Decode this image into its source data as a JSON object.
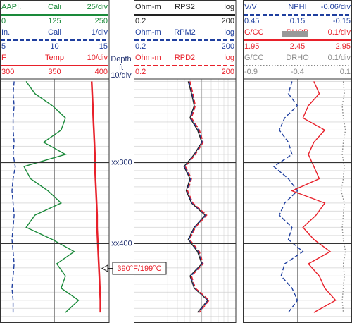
{
  "chart_data": {
    "type": "well-log",
    "depth_label": "Depth",
    "depth_unit": "ft",
    "depth_scale": "10/div",
    "ylim": [
      197,
      498
    ],
    "yticks": [
      {
        "value": 300,
        "label": "xx300"
      },
      {
        "value": 400,
        "label": "xx400"
      }
    ],
    "depths": [
      200,
      215,
      230,
      245,
      260,
      275,
      290,
      305,
      320,
      335,
      350,
      365,
      380,
      395,
      410,
      425,
      440,
      455,
      470,
      485
    ],
    "annotation": "390°F/199°C",
    "tracks": [
      {
        "curves": [
          {
            "unit": "AAPI.",
            "name": "Cali",
            "scale": "25/div",
            "color": "#1a8a3a",
            "dash": "solid",
            "xlim": [
              0,
              250
            ],
            "xticks": [
              0,
              125,
              250
            ],
            "values": [
              60,
              80,
              120,
              150,
              140,
              100,
              150,
              55,
              70,
              110,
              140,
              80,
              60,
              120,
              170,
              130,
              150,
              140,
              180,
              150
            ]
          },
          {
            "unit": "In.",
            "name": "Cali",
            "scale": "1/div",
            "color": "#1f3f9f",
            "dash": "dashed",
            "xlim": [
              5,
              15
            ],
            "xticks": [
              5,
              10,
              15
            ],
            "values": [
              6.3,
              6.2,
              6.3,
              6.2,
              6.2,
              6.3,
              6.2,
              6.4,
              6.2,
              6.1,
              6.2,
              6.3,
              6.2,
              6.1,
              6.2,
              6.3,
              6.2,
              6.1,
              6.2,
              6.2
            ]
          },
          {
            "unit": "F",
            "name": "Temp",
            "scale": "10/div",
            "color": "#e8202a",
            "dash": "solid",
            "xlim": [
              300,
              400
            ],
            "xticks": [
              300,
              350,
              400
            ],
            "values": [
              384,
              384.5,
              385,
              385.5,
              386,
              386.5,
              387,
              387,
              387.5,
              388,
              388.5,
              389,
              389,
              389.5,
              390,
              390.5,
              391,
              391.5,
              392,
              392
            ]
          }
        ]
      },
      {
        "curves": [
          {
            "unit": "Ohm-m",
            "name": "RPS2",
            "scale": "log",
            "color": "#222222",
            "dash": "solid",
            "log": true,
            "xlim": [
              0.2,
              200
            ],
            "xticks": [
              0.2,
              200
            ],
            "values": [
              8,
              10,
              12,
              9,
              15,
              20,
              12,
              6,
              9,
              7,
              10,
              25,
              12,
              8,
              15,
              20,
              9,
              12,
              30,
              15
            ]
          },
          {
            "unit": "Ohm-m",
            "name": "RPM2",
            "scale": "log",
            "color": "#1f3f9f",
            "dash": "dashed",
            "log": true,
            "xlim": [
              0.2,
              200
            ],
            "xticks": [
              0.2,
              200
            ],
            "values": [
              8.5,
              10.5,
              12.5,
              9.5,
              16,
              21,
              12.5,
              6.3,
              9.5,
              7.4,
              10.5,
              26,
              12.5,
              8.4,
              16,
              21,
              9.5,
              12.5,
              31,
              16
            ]
          },
          {
            "unit": "Ohm-m",
            "name": "RPD2",
            "scale": "log",
            "color": "#e8202a",
            "dash": "dashed",
            "log": true,
            "xlim": [
              0.2,
              200
            ],
            "xticks": [
              0.2,
              200
            ],
            "values": [
              9,
              11,
              13,
              10,
              17,
              22,
              13,
              6.6,
              10,
              7.7,
              11,
              28,
              13,
              8.8,
              17,
              22,
              10,
              13,
              33,
              17
            ]
          }
        ]
      },
      {
        "curves": [
          {
            "unit": "V/V",
            "name": "NPHI",
            "scale": "-0.06/div",
            "color": "#1f3f9f",
            "dash": "dashed",
            "xlim": [
              0.45,
              -0.15
            ],
            "xticks": [
              0.45,
              0.15,
              -0.15
            ],
            "values": [
              0.18,
              0.2,
              0.15,
              0.22,
              0.25,
              0.2,
              0.18,
              0.28,
              0.2,
              0.15,
              0.22,
              0.25,
              0.18,
              0.2,
              0.12,
              0.22,
              0.24,
              0.18,
              0.15,
              0.2
            ]
          },
          {
            "unit": "G/CC",
            "name": "RHOB",
            "scale": "0.1/div",
            "color": "#e8202a",
            "dash": "solid",
            "xlim": [
              1.95,
              2.95
            ],
            "xticks": [
              1.95,
              2.45,
              2.95
            ],
            "values": [
              2.6,
              2.65,
              2.55,
              2.5,
              2.7,
              2.6,
              2.55,
              2.6,
              2.65,
              2.4,
              2.7,
              2.62,
              2.5,
              2.6,
              2.75,
              2.55,
              2.65,
              2.7,
              2.8,
              2.6
            ]
          },
          {
            "unit": "G/CC",
            "name": "DRHO",
            "scale": "0.1/div",
            "color": "#888888",
            "dash": "dotted",
            "xlim": [
              -0.9,
              0.1
            ],
            "xticks": [
              -0.9,
              -0.4,
              0.1
            ],
            "values": [
              0.02,
              0.03,
              0.01,
              0.02,
              0.04,
              0.02,
              0.01,
              0.03,
              0.02,
              0,
              0.03,
              0.02,
              0.01,
              0.02,
              0.04,
              0.02,
              0.03,
              0.02,
              0.01,
              0.02
            ]
          }
        ]
      }
    ]
  }
}
